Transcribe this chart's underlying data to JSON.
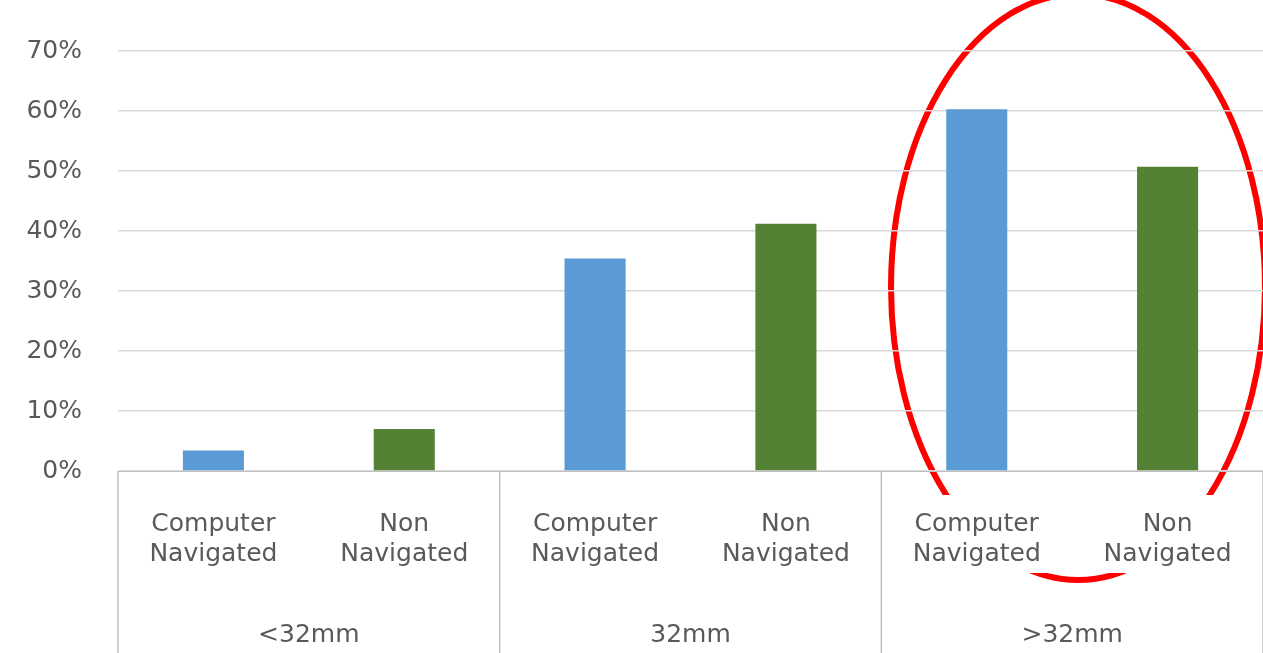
{
  "chart_data": {
    "type": "bar",
    "categories": [
      "Computer Navigated",
      "Non Navigated",
      "Computer Navigated",
      "Non Navigated",
      "Computer Navigated",
      "Non Navigated"
    ],
    "values": [
      3.4,
      7.0,
      35.4,
      41.2,
      60.3,
      50.7
    ],
    "colors": [
      "#5b9bd5",
      "#548235",
      "#5b9bd5",
      "#548235",
      "#5b9bd5",
      "#548235"
    ],
    "ylim": [
      0,
      70
    ],
    "yticks": [
      {
        "value": 0,
        "label": "0%"
      },
      {
        "value": 10,
        "label": "10%"
      },
      {
        "value": 20,
        "label": "20%"
      },
      {
        "value": 30,
        "label": "30%"
      },
      {
        "value": 40,
        "label": "40%"
      },
      {
        "value": 50,
        "label": "50%"
      },
      {
        "value": 60,
        "label": "60%"
      },
      {
        "value": 70,
        "label": "70%"
      }
    ],
    "annotations": [
      "<32mm",
      "32mm",
      ">32mm"
    ],
    "grid": "y",
    "legend": false
  }
}
